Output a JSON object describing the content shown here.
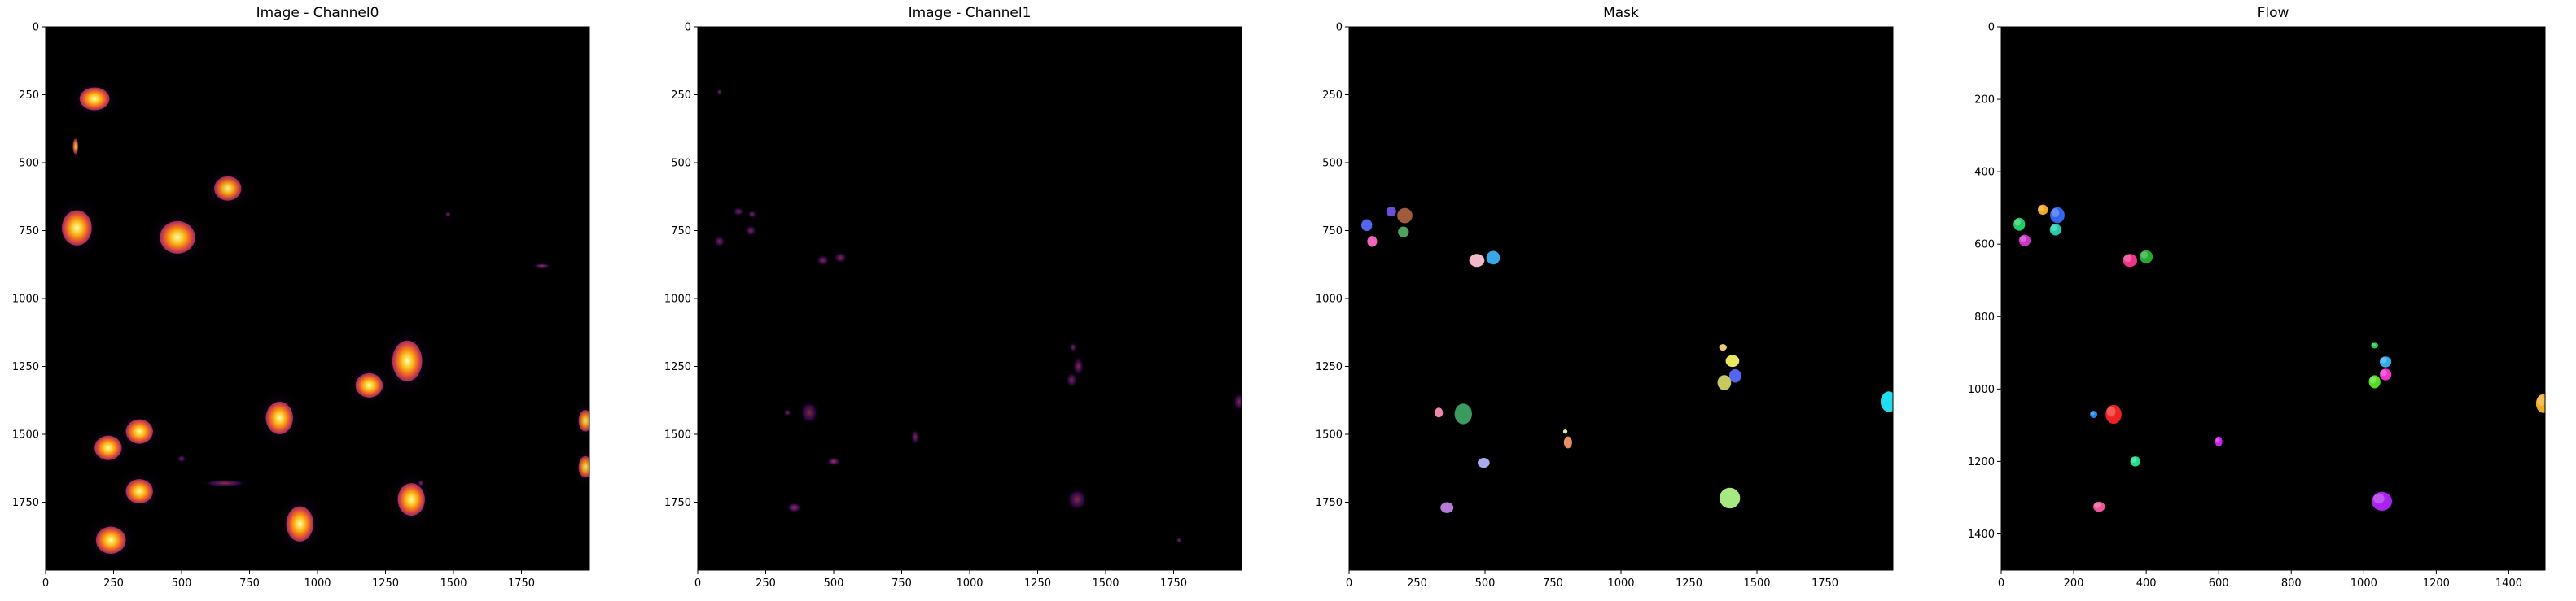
{
  "chart_data": [
    {
      "type": "heatmap",
      "title": "Image - Channel0",
      "colormap": "inferno",
      "xlim": [
        0,
        2000
      ],
      "ylim": [
        2000,
        0
      ],
      "x_ticks": [
        0,
        250,
        500,
        750,
        1000,
        1250,
        1500,
        1750
      ],
      "y_ticks": [
        0,
        250,
        500,
        750,
        1000,
        1250,
        1500,
        1750
      ],
      "blobs": [
        {
          "x": 180,
          "y": 265,
          "rx": 55,
          "ry": 42,
          "i": 1.0
        },
        {
          "x": 110,
          "y": 440,
          "rx": 10,
          "ry": 28,
          "i": 0.8
        },
        {
          "x": 670,
          "y": 595,
          "rx": 50,
          "ry": 45,
          "i": 0.95
        },
        {
          "x": 115,
          "y": 740,
          "rx": 55,
          "ry": 65,
          "i": 1.0
        },
        {
          "x": 485,
          "y": 775,
          "rx": 65,
          "ry": 60,
          "i": 1.0
        },
        {
          "x": 1480,
          "y": 690,
          "rx": 8,
          "ry": 8,
          "i": 0.5
        },
        {
          "x": 1825,
          "y": 880,
          "rx": 25,
          "ry": 6,
          "i": 0.7
        },
        {
          "x": 1330,
          "y": 1230,
          "rx": 55,
          "ry": 75,
          "i": 1.0
        },
        {
          "x": 1190,
          "y": 1320,
          "rx": 50,
          "ry": 45,
          "i": 1.0
        },
        {
          "x": 860,
          "y": 1440,
          "rx": 50,
          "ry": 60,
          "i": 1.0
        },
        {
          "x": 345,
          "y": 1490,
          "rx": 50,
          "ry": 45,
          "i": 1.0
        },
        {
          "x": 230,
          "y": 1550,
          "rx": 50,
          "ry": 45,
          "i": 1.0
        },
        {
          "x": 1985,
          "y": 1450,
          "rx": 25,
          "ry": 40,
          "i": 0.9
        },
        {
          "x": 1985,
          "y": 1620,
          "rx": 25,
          "ry": 40,
          "i": 0.9
        },
        {
          "x": 345,
          "y": 1710,
          "rx": 50,
          "ry": 45,
          "i": 1.0
        },
        {
          "x": 1345,
          "y": 1740,
          "rx": 50,
          "ry": 60,
          "i": 1.0
        },
        {
          "x": 935,
          "y": 1830,
          "rx": 50,
          "ry": 65,
          "i": 1.0
        },
        {
          "x": 240,
          "y": 1890,
          "rx": 55,
          "ry": 50,
          "i": 1.0
        },
        {
          "x": 660,
          "y": 1680,
          "rx": 60,
          "ry": 10,
          "i": 0.6
        },
        {
          "x": 500,
          "y": 1590,
          "rx": 12,
          "ry": 10,
          "i": 0.5
        },
        {
          "x": 1380,
          "y": 1680,
          "rx": 10,
          "ry": 10,
          "i": 0.4
        }
      ]
    },
    {
      "type": "heatmap",
      "title": "Image - Channel1",
      "colormap": "inferno",
      "xlim": [
        0,
        2000
      ],
      "ylim": [
        2000,
        0
      ],
      "x_ticks": [
        0,
        250,
        500,
        750,
        1000,
        1250,
        1500,
        1750
      ],
      "y_ticks": [
        0,
        250,
        500,
        750,
        1000,
        1250,
        1500,
        1750
      ],
      "blobs": [
        {
          "x": 80,
          "y": 240,
          "rx": 8,
          "ry": 8,
          "i": 0.3
        },
        {
          "x": 150,
          "y": 680,
          "rx": 15,
          "ry": 12,
          "i": 0.35
        },
        {
          "x": 200,
          "y": 690,
          "rx": 12,
          "ry": 10,
          "i": 0.35
        },
        {
          "x": 195,
          "y": 750,
          "rx": 15,
          "ry": 15,
          "i": 0.35
        },
        {
          "x": 80,
          "y": 790,
          "rx": 15,
          "ry": 15,
          "i": 0.3
        },
        {
          "x": 460,
          "y": 860,
          "rx": 18,
          "ry": 15,
          "i": 0.35
        },
        {
          "x": 525,
          "y": 850,
          "rx": 18,
          "ry": 15,
          "i": 0.35
        },
        {
          "x": 1380,
          "y": 1180,
          "rx": 10,
          "ry": 12,
          "i": 0.45
        },
        {
          "x": 1400,
          "y": 1250,
          "rx": 15,
          "ry": 25,
          "i": 0.4
        },
        {
          "x": 1375,
          "y": 1300,
          "rx": 15,
          "ry": 20,
          "i": 0.35
        },
        {
          "x": 1990,
          "y": 1380,
          "rx": 15,
          "ry": 25,
          "i": 0.5
        },
        {
          "x": 410,
          "y": 1420,
          "rx": 25,
          "ry": 30,
          "i": 0.4
        },
        {
          "x": 330,
          "y": 1420,
          "rx": 10,
          "ry": 10,
          "i": 0.3
        },
        {
          "x": 800,
          "y": 1510,
          "rx": 12,
          "ry": 20,
          "i": 0.3
        },
        {
          "x": 500,
          "y": 1600,
          "rx": 18,
          "ry": 12,
          "i": 0.7
        },
        {
          "x": 355,
          "y": 1770,
          "rx": 20,
          "ry": 14,
          "i": 0.7
        },
        {
          "x": 1395,
          "y": 1740,
          "rx": 28,
          "ry": 30,
          "i": 0.45
        },
        {
          "x": 1770,
          "y": 1890,
          "rx": 8,
          "ry": 8,
          "i": 0.5
        }
      ]
    },
    {
      "type": "heatmap",
      "title": "Mask",
      "colormap": "categorical",
      "xlim": [
        0,
        2000
      ],
      "ylim": [
        2000,
        0
      ],
      "x_ticks": [
        0,
        250,
        500,
        750,
        1000,
        1250,
        1500,
        1750
      ],
      "y_ticks": [
        0,
        250,
        500,
        750,
        1000,
        1250,
        1500,
        1750
      ],
      "blobs": [
        {
          "x": 65,
          "y": 730,
          "rx": 20,
          "ry": 22,
          "c": "#5566ee"
        },
        {
          "x": 155,
          "y": 680,
          "rx": 18,
          "ry": 18,
          "c": "#6b4fd8"
        },
        {
          "x": 205,
          "y": 695,
          "rx": 28,
          "ry": 28,
          "c": "#a05a3c"
        },
        {
          "x": 200,
          "y": 755,
          "rx": 20,
          "ry": 20,
          "c": "#4fa060"
        },
        {
          "x": 85,
          "y": 790,
          "rx": 18,
          "ry": 20,
          "c": "#ee66bb"
        },
        {
          "x": 470,
          "y": 860,
          "rx": 28,
          "ry": 24,
          "c": "#f0b8c8"
        },
        {
          "x": 530,
          "y": 850,
          "rx": 25,
          "ry": 25,
          "c": "#3aa8e8"
        },
        {
          "x": 1375,
          "y": 1180,
          "rx": 14,
          "ry": 12,
          "c": "#e8c87a"
        },
        {
          "x": 1410,
          "y": 1230,
          "rx": 25,
          "ry": 22,
          "c": "#e8e860"
        },
        {
          "x": 1420,
          "y": 1285,
          "rx": 22,
          "ry": 25,
          "c": "#5566ee"
        },
        {
          "x": 1380,
          "y": 1310,
          "rx": 25,
          "ry": 28,
          "c": "#c8c860"
        },
        {
          "x": 1985,
          "y": 1380,
          "rx": 30,
          "ry": 38,
          "c": "#22ddee"
        },
        {
          "x": 420,
          "y": 1425,
          "rx": 32,
          "ry": 38,
          "c": "#3a9a60"
        },
        {
          "x": 330,
          "y": 1420,
          "rx": 15,
          "ry": 18,
          "c": "#ee88aa"
        },
        {
          "x": 805,
          "y": 1530,
          "rx": 15,
          "ry": 22,
          "c": "#e89060"
        },
        {
          "x": 795,
          "y": 1490,
          "rx": 8,
          "ry": 8,
          "c": "#e8e8a0"
        },
        {
          "x": 495,
          "y": 1605,
          "rx": 22,
          "ry": 18,
          "c": "#aaaaf0"
        },
        {
          "x": 360,
          "y": 1770,
          "rx": 24,
          "ry": 20,
          "c": "#b87ad8"
        },
        {
          "x": 1400,
          "y": 1735,
          "rx": 38,
          "ry": 38,
          "c": "#a8e880"
        }
      ]
    },
    {
      "type": "heatmap",
      "title": "Flow",
      "colormap": "hsv",
      "xlim": [
        0,
        1500
      ],
      "ylim": [
        1500,
        0
      ],
      "x_ticks": [
        0,
        200,
        400,
        600,
        800,
        1000,
        1200,
        1400
      ],
      "y_ticks": [
        0,
        200,
        400,
        600,
        800,
        1000,
        1200,
        1400
      ],
      "blobs": [
        {
          "x": 50,
          "y": 545,
          "rx": 16,
          "ry": 18,
          "c": "#22cc66"
        },
        {
          "x": 65,
          "y": 590,
          "rx": 16,
          "ry": 16,
          "c": "#cc33cc"
        },
        {
          "x": 115,
          "y": 505,
          "rx": 14,
          "ry": 14,
          "c": "#eeaa22"
        },
        {
          "x": 155,
          "y": 520,
          "rx": 20,
          "ry": 22,
          "c": "#3366ee"
        },
        {
          "x": 150,
          "y": 560,
          "rx": 16,
          "ry": 16,
          "c": "#22ccaa"
        },
        {
          "x": 355,
          "y": 645,
          "rx": 20,
          "ry": 18,
          "c": "#ee3388"
        },
        {
          "x": 400,
          "y": 635,
          "rx": 18,
          "ry": 18,
          "c": "#22aa33"
        },
        {
          "x": 1030,
          "y": 880,
          "rx": 10,
          "ry": 8,
          "c": "#22cc44"
        },
        {
          "x": 1060,
          "y": 925,
          "rx": 16,
          "ry": 15,
          "c": "#33aaee"
        },
        {
          "x": 1060,
          "y": 960,
          "rx": 16,
          "ry": 16,
          "c": "#ee33cc"
        },
        {
          "x": 1030,
          "y": 980,
          "rx": 16,
          "ry": 18,
          "c": "#55dd22"
        },
        {
          "x": 1495,
          "y": 1040,
          "rx": 20,
          "ry": 26,
          "c": "#eeaa22"
        },
        {
          "x": 310,
          "y": 1070,
          "rx": 22,
          "ry": 26,
          "c": "#ee2222"
        },
        {
          "x": 255,
          "y": 1070,
          "rx": 10,
          "ry": 10,
          "c": "#2288ee"
        },
        {
          "x": 600,
          "y": 1145,
          "rx": 10,
          "ry": 14,
          "c": "#cc22ee"
        },
        {
          "x": 370,
          "y": 1200,
          "rx": 14,
          "ry": 14,
          "c": "#22dd88"
        },
        {
          "x": 270,
          "y": 1325,
          "rx": 16,
          "ry": 14,
          "c": "#ee5599"
        },
        {
          "x": 1050,
          "y": 1310,
          "rx": 28,
          "ry": 26,
          "c": "#aa22ee"
        }
      ]
    }
  ]
}
